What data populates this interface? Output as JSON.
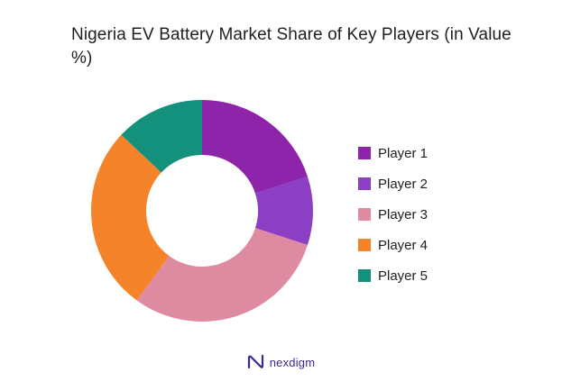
{
  "chart_data": {
    "type": "pie",
    "variant": "donut",
    "title": "Nigeria EV Battery Market Share of Key Players (in Value %)",
    "categories": [
      "Player 1",
      "Player 2",
      "Player 3",
      "Player 4",
      "Player 5"
    ],
    "values": [
      20,
      10,
      30,
      27,
      13
    ],
    "colors": [
      "#8e24aa",
      "#8b3fc4",
      "#de8aa0",
      "#f5832a",
      "#14917d"
    ],
    "legend_position": "right",
    "start_angle_deg": 0,
    "direction": "clockwise"
  },
  "branding": {
    "logo_text": "nexdigm",
    "logo_icon": "nexdigm-n-icon",
    "logo_color": "#3a2a8c"
  }
}
